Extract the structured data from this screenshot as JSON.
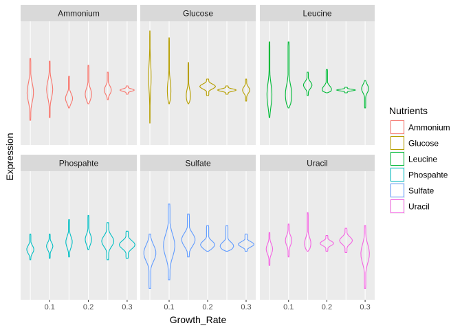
{
  "chart_data": {
    "type": "violin",
    "facet_by": "Nutrient",
    "xlabel": "Growth_Rate",
    "ylabel": "Expression",
    "x": [
      0.05,
      0.1,
      0.15,
      0.2,
      0.25,
      0.3
    ],
    "xticks": [
      "0.1",
      "0.2",
      "0.3"
    ],
    "xtick_values": [
      0.1,
      0.2,
      0.3
    ],
    "xlim": [
      0.025,
      0.325
    ],
    "y_ticks_shown": false,
    "grid": true,
    "legend": {
      "title": "Nutrients",
      "position": "right",
      "entries": [
        "Ammonium",
        "Glucose",
        "Leucine",
        "Phospahte",
        "Sulfate",
        "Uracil"
      ]
    },
    "colors": {
      "Ammonium": "#F8766D",
      "Glucose": "#B79F00",
      "Leucine": "#00BA38",
      "Phospahte": "#00BFC4",
      "Sulfate": "#619CFF",
      "Uracil": "#F564E3",
      "panel_bg": "#EBEBEB",
      "strip_bg": "#D9D9D9",
      "grid": "#FFFFFF"
    },
    "panels": [
      {
        "name": "Ammonium",
        "violins": [
          {
            "x": 0.05,
            "min": -2.2,
            "max": 2.3,
            "width": 0.9,
            "peak": 0.45
          },
          {
            "x": 0.1,
            "min": -2.0,
            "max": 2.1,
            "width": 0.85,
            "peak": 0.5
          },
          {
            "x": 0.15,
            "min": -1.3,
            "max": 1.0,
            "width": 1.0,
            "peak": 0.3
          },
          {
            "x": 0.2,
            "min": -1.0,
            "max": 1.8,
            "width": 0.9,
            "peak": 0.25
          },
          {
            "x": 0.25,
            "min": -0.7,
            "max": 1.3,
            "width": 1.0,
            "peak": 0.35
          },
          {
            "x": 0.3,
            "min": -0.3,
            "max": 0.3,
            "width": 2.0,
            "peak": 0.5
          }
        ]
      },
      {
        "name": "Glucose",
        "violins": [
          {
            "x": 0.05,
            "min": -2.4,
            "max": 4.3,
            "width": 0.35,
            "peak": 0.5
          },
          {
            "x": 0.1,
            "min": -1.0,
            "max": 3.8,
            "width": 0.5,
            "peak": 0.2
          },
          {
            "x": 0.15,
            "min": -1.0,
            "max": 2.0,
            "width": 0.6,
            "peak": 0.2
          },
          {
            "x": 0.2,
            "min": -0.4,
            "max": 0.8,
            "width": 2.2,
            "peak": 0.55
          },
          {
            "x": 0.25,
            "min": -0.3,
            "max": 0.3,
            "width": 2.6,
            "peak": 0.5
          },
          {
            "x": 0.3,
            "min": -0.8,
            "max": 0.8,
            "width": 1.0,
            "peak": 0.5
          }
        ]
      },
      {
        "name": "Leucine",
        "violins": [
          {
            "x": 0.05,
            "min": -2.0,
            "max": 3.5,
            "width": 0.7,
            "peak": 0.3
          },
          {
            "x": 0.1,
            "min": -1.3,
            "max": 3.5,
            "width": 0.9,
            "peak": 0.2
          },
          {
            "x": 0.15,
            "min": -0.4,
            "max": 1.3,
            "width": 1.2,
            "peak": 0.45
          },
          {
            "x": 0.2,
            "min": -0.2,
            "max": 1.5,
            "width": 1.3,
            "peak": 0.15
          },
          {
            "x": 0.25,
            "min": -0.2,
            "max": 0.2,
            "width": 2.6,
            "peak": 0.5
          },
          {
            "x": 0.3,
            "min": -1.3,
            "max": 0.7,
            "width": 1.0,
            "peak": 0.7
          }
        ]
      },
      {
        "name": "Phospahte",
        "violins": [
          {
            "x": 0.05,
            "min": -1.2,
            "max": 0.6,
            "width": 1.0,
            "peak": 0.4
          },
          {
            "x": 0.1,
            "min": -1.1,
            "max": 0.6,
            "width": 0.9,
            "peak": 0.5
          },
          {
            "x": 0.15,
            "min": -1.0,
            "max": 1.6,
            "width": 0.9,
            "peak": 0.4
          },
          {
            "x": 0.2,
            "min": -0.5,
            "max": 1.9,
            "width": 0.9,
            "peak": 0.3
          },
          {
            "x": 0.25,
            "min": -1.2,
            "max": 1.4,
            "width": 1.7,
            "peak": 0.5
          },
          {
            "x": 0.3,
            "min": -1.1,
            "max": 0.8,
            "width": 2.2,
            "peak": 0.5
          }
        ]
      },
      {
        "name": "Sulfate",
        "violins": [
          {
            "x": 0.05,
            "min": -3.2,
            "max": 0.6,
            "width": 1.7,
            "peak": 0.65
          },
          {
            "x": 0.1,
            "min": -2.6,
            "max": 2.7,
            "width": 1.6,
            "peak": 0.45
          },
          {
            "x": 0.15,
            "min": -1.0,
            "max": 2.0,
            "width": 1.9,
            "peak": 0.4
          },
          {
            "x": 0.2,
            "min": -0.6,
            "max": 1.2,
            "width": 2.0,
            "peak": 0.25
          },
          {
            "x": 0.25,
            "min": -0.6,
            "max": 1.2,
            "width": 1.9,
            "peak": 0.2
          },
          {
            "x": 0.3,
            "min": -0.6,
            "max": 0.6,
            "width": 2.2,
            "peak": 0.4
          }
        ]
      },
      {
        "name": "Uracil",
        "violins": [
          {
            "x": 0.05,
            "min": -1.6,
            "max": 0.7,
            "width": 0.9,
            "peak": 0.5
          },
          {
            "x": 0.1,
            "min": -1.0,
            "max": 1.3,
            "width": 0.9,
            "peak": 0.5
          },
          {
            "x": 0.15,
            "min": -0.6,
            "max": 2.1,
            "width": 0.9,
            "peak": 0.2
          },
          {
            "x": 0.2,
            "min": -0.6,
            "max": 0.5,
            "width": 1.9,
            "peak": 0.5
          },
          {
            "x": 0.25,
            "min": -0.7,
            "max": 1.0,
            "width": 1.8,
            "peak": 0.5
          },
          {
            "x": 0.3,
            "min": -3.2,
            "max": 1.2,
            "width": 1.2,
            "peak": 0.55
          }
        ]
      }
    ]
  }
}
